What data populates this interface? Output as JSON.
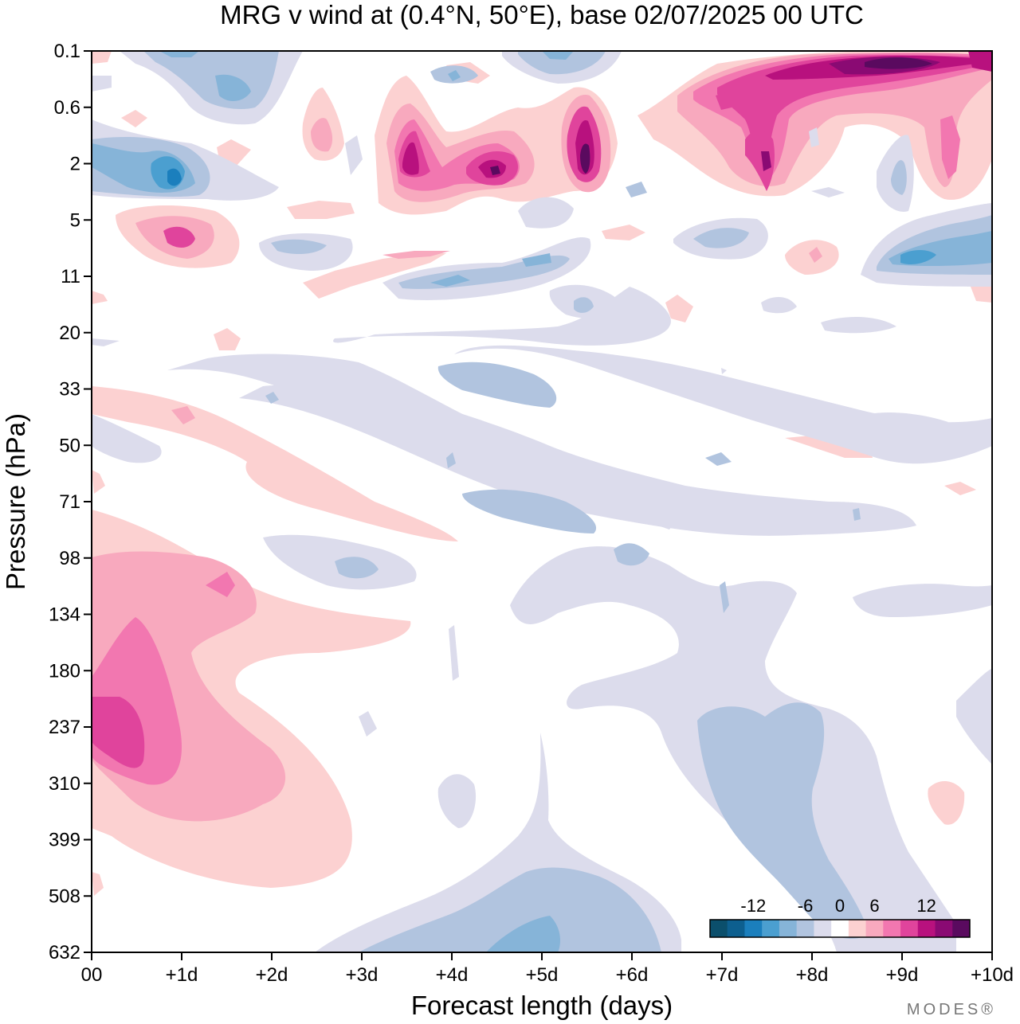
{
  "chart_data": {
    "type": "heatmap",
    "title": "MRG v wind at (0.4°N, 50°E),  base 02/07/2025  00 UTC",
    "xlabel": "Forecast length (days)",
    "ylabel": "Pressure (hPa)",
    "x_ticks": [
      "00",
      "+1d",
      "+2d",
      "+3d",
      "+4d",
      "+5d",
      "+6d",
      "+7d",
      "+8d",
      "+9d",
      "+10d"
    ],
    "y_ticks": [
      "0.1",
      "0.6",
      "2",
      "5",
      "11",
      "20",
      "33",
      "50",
      "71",
      "98",
      "134",
      "180",
      "237",
      "310",
      "399",
      "508",
      "632"
    ],
    "xlim": [
      0,
      10
    ],
    "ylim_hpa": [
      632,
      0.1
    ],
    "colorbar": {
      "tick_labels": [
        "-12",
        "-6",
        "0",
        "6",
        "12"
      ],
      "levels": [
        -14,
        -12,
        -10,
        -8,
        -6,
        -4,
        -2,
        2,
        4,
        6,
        8,
        10,
        12,
        14
      ],
      "colors": [
        "#0b4f6c",
        "#0d5f8f",
        "#1b7fbd",
        "#4b9fd0",
        "#86b4d8",
        "#b1c4df",
        "#dcdcec",
        "#ffffff",
        "#fcd1d1",
        "#f8a9be",
        "#f277b0",
        "#e0449c",
        "#b8117e",
        "#8a0a73",
        "#5a0a5f"
      ]
    },
    "features": [
      {
        "x": 0.5,
        "y": "180-310",
        "v": 9
      },
      {
        "x": 1.4,
        "y": "98-134",
        "v": 8
      },
      {
        "x": 1.0,
        "y": "5-11",
        "v": 8
      },
      {
        "x": 1.0,
        "y": "2",
        "v": -10
      },
      {
        "x": 1.5,
        "y": "0.6",
        "v": -6
      },
      {
        "x": 3.5,
        "y": "2",
        "v": 10
      },
      {
        "x": 4.5,
        "y": "2",
        "v": 12
      },
      {
        "x": 5.5,
        "y": "2",
        "v": 13
      },
      {
        "x": 7.5,
        "y": "2",
        "v": 12
      },
      {
        "x": 9.0,
        "y": "0.1-0.6",
        "v": 14
      },
      {
        "x": 9.5,
        "y": "2",
        "v": 10
      },
      {
        "x": 9.2,
        "y": "5-11",
        "v": -9
      },
      {
        "x": 5.0,
        "y": "508-632",
        "v": -8
      },
      {
        "x": 8.0,
        "y": "237-399",
        "v": -5
      },
      {
        "x": 3.5,
        "y": "33-50",
        "v": -4
      },
      {
        "x": 4.5,
        "y": "71",
        "v": -5
      },
      {
        "x": 9.5,
        "y": "310-399",
        "v": 4
      }
    ]
  },
  "branding": "MODES®"
}
